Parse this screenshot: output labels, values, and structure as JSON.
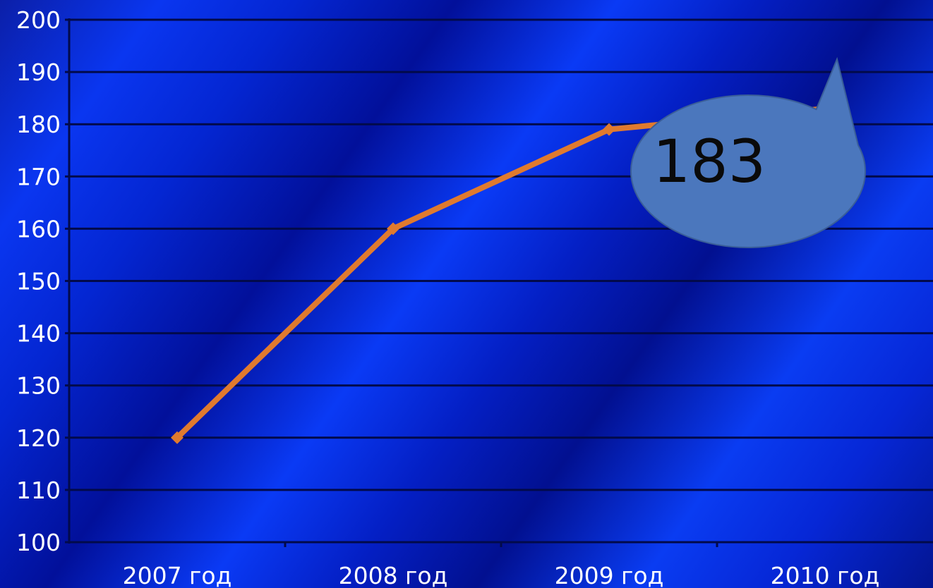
{
  "chart_data": {
    "type": "line",
    "categories": [
      "2007 год",
      "2008 год",
      "2009 год",
      "2010 год"
    ],
    "series": [
      {
        "values": [
          120,
          160,
          179,
          183
        ]
      }
    ],
    "ylim": [
      100,
      200
    ],
    "yticks": [
      100,
      110,
      120,
      130,
      140,
      150,
      160,
      170,
      180,
      190,
      200
    ],
    "grid": true,
    "legend": "none",
    "annotations": [
      {
        "text": "183",
        "category": "2010 год",
        "shape": "speech-bubble"
      }
    ],
    "colors": {
      "line": "#e07a2e",
      "gridline": "#020a4a",
      "callout_fill": "#4b77bd",
      "callout_text": "#0a0a0a",
      "tick_text": "#ffffff"
    }
  }
}
